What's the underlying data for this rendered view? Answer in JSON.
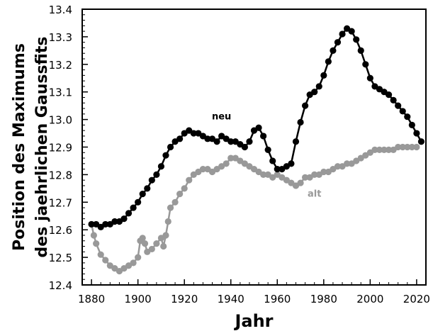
{
  "chart_data": {
    "type": "line",
    "xlabel": "Jahr",
    "ylabel_line1": "Position des Maximums",
    "ylabel_line2": "des jaehrlichen Gaussfits",
    "xlim": [
      1876,
      2024
    ],
    "ylim": [
      12.4,
      13.4
    ],
    "xticks": [
      1880,
      1900,
      1920,
      1940,
      1960,
      1980,
      2000,
      2020
    ],
    "yticks": [
      12.4,
      12.5,
      12.6,
      12.7,
      12.8,
      12.9,
      13.0,
      13.1,
      13.2,
      13.3,
      13.4
    ],
    "xtick_labels": [
      "1880",
      "1900",
      "1920",
      "1940",
      "1960",
      "1980",
      "2000",
      "2020"
    ],
    "ytick_labels": [
      "12.4",
      "12.5",
      "12.6",
      "12.7",
      "12.8",
      "12.9",
      "13.0",
      "13.1",
      "13.2",
      "13.3",
      "13.4"
    ],
    "grid": false,
    "series": [
      {
        "name": "neu",
        "color": "#000000",
        "label_x": 1936,
        "label_y": 13.0,
        "x": [
          1880,
          1882,
          1884,
          1886,
          1888,
          1890,
          1892,
          1894,
          1896,
          1898,
          1900,
          1902,
          1904,
          1906,
          1908,
          1910,
          1912,
          1914,
          1916,
          1918,
          1920,
          1922,
          1924,
          1926,
          1928,
          1930,
          1932,
          1934,
          1936,
          1938,
          1940,
          1942,
          1944,
          1946,
          1948,
          1950,
          1952,
          1954,
          1956,
          1958,
          1960,
          1962,
          1964,
          1966,
          1968,
          1970,
          1972,
          1974,
          1976,
          1978,
          1980,
          1982,
          1984,
          1986,
          1988,
          1990,
          1992,
          1994,
          1996,
          1998,
          2000,
          2002,
          2004,
          2006,
          2008,
          2010,
          2012,
          2014,
          2016,
          2018,
          2020,
          2022
        ],
        "y": [
          12.62,
          12.62,
          12.61,
          12.62,
          12.62,
          12.63,
          12.63,
          12.64,
          12.66,
          12.68,
          12.7,
          12.73,
          12.75,
          12.78,
          12.8,
          12.83,
          12.87,
          12.9,
          12.92,
          12.93,
          12.95,
          12.96,
          12.95,
          12.95,
          12.94,
          12.93,
          12.93,
          12.92,
          12.94,
          12.93,
          12.92,
          12.92,
          12.91,
          12.9,
          12.92,
          12.96,
          12.97,
          12.94,
          12.89,
          12.85,
          12.82,
          12.82,
          12.83,
          12.84,
          12.92,
          12.99,
          13.05,
          13.09,
          13.1,
          13.12,
          13.16,
          13.21,
          13.25,
          13.28,
          13.31,
          13.33,
          13.32,
          13.29,
          13.25,
          13.2,
          13.15,
          13.12,
          13.11,
          13.1,
          13.09,
          13.07,
          13.05,
          13.03,
          13.01,
          12.98,
          12.95,
          12.92
        ]
      },
      {
        "name": "alt",
        "color": "#999999",
        "label_x": 1976,
        "label_y": 12.72,
        "x": [
          1880,
          1881,
          1882,
          1884,
          1886,
          1888,
          1890,
          1892,
          1894,
          1896,
          1898,
          1900,
          1901,
          1902,
          1903,
          1904,
          1906,
          1908,
          1910,
          1911,
          1912,
          1913,
          1914,
          1916,
          1918,
          1920,
          1922,
          1924,
          1926,
          1928,
          1930,
          1932,
          1934,
          1936,
          1938,
          1940,
          1942,
          1944,
          1946,
          1948,
          1950,
          1952,
          1954,
          1956,
          1958,
          1960,
          1962,
          1964,
          1966,
          1968,
          1970,
          1972,
          1974,
          1976,
          1978,
          1980,
          1982,
          1984,
          1986,
          1988,
          1990,
          1992,
          1994,
          1996,
          1998,
          2000,
          2002,
          2004,
          2006,
          2008,
          2010,
          2012,
          2014,
          2016,
          2018,
          2020
        ],
        "y": [
          12.62,
          12.58,
          12.55,
          12.51,
          12.49,
          12.47,
          12.46,
          12.45,
          12.46,
          12.47,
          12.48,
          12.5,
          12.56,
          12.57,
          12.55,
          12.52,
          12.53,
          12.55,
          12.57,
          12.54,
          12.58,
          12.63,
          12.68,
          12.7,
          12.73,
          12.75,
          12.78,
          12.8,
          12.81,
          12.82,
          12.82,
          12.81,
          12.82,
          12.83,
          12.84,
          12.86,
          12.86,
          12.85,
          12.84,
          12.83,
          12.82,
          12.81,
          12.8,
          12.8,
          12.79,
          12.8,
          12.79,
          12.78,
          12.77,
          12.76,
          12.77,
          12.79,
          12.79,
          12.8,
          12.8,
          12.81,
          12.81,
          12.82,
          12.83,
          12.83,
          12.84,
          12.84,
          12.85,
          12.86,
          12.87,
          12.88,
          12.89,
          12.89,
          12.89,
          12.89,
          12.89,
          12.9,
          12.9,
          12.9,
          12.9,
          12.9
        ]
      }
    ]
  }
}
